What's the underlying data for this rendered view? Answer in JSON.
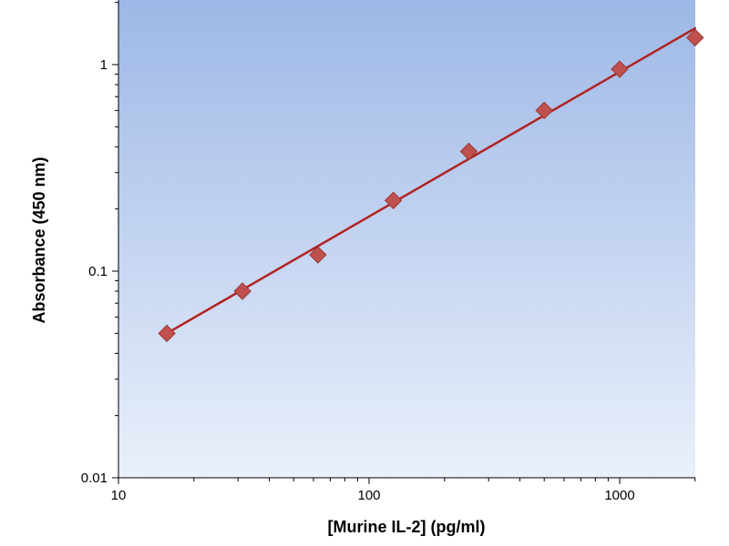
{
  "chart_data": {
    "type": "scatter",
    "title": "",
    "xlabel": "[Murine IL-2] (pg/ml)",
    "ylabel": "Absorbance (450 nm)",
    "x_scale": "log",
    "y_scale": "log",
    "xlim": [
      10,
      2000
    ],
    "ylim": [
      0.01,
      2
    ],
    "x_ticks": [
      {
        "value": 10,
        "label": "10"
      },
      {
        "value": 100,
        "label": "100"
      },
      {
        "value": 1000,
        "label": "1000"
      }
    ],
    "y_ticks": [
      {
        "value": 0.01,
        "label": "0.01"
      },
      {
        "value": 0.1,
        "label": "0.1"
      },
      {
        "value": 1,
        "label": "1"
      }
    ],
    "grid": false,
    "legend": "none",
    "series": [
      {
        "marker": "diamond",
        "points": [
          {
            "x": 15.6,
            "y": 0.05
          },
          {
            "x": 31.25,
            "y": 0.08
          },
          {
            "x": 62.5,
            "y": 0.12
          },
          {
            "x": 125,
            "y": 0.22
          },
          {
            "x": 250,
            "y": 0.38
          },
          {
            "x": 500,
            "y": 0.6
          },
          {
            "x": 1000,
            "y": 0.95
          },
          {
            "x": 2000,
            "y": 1.35
          }
        ]
      }
    ],
    "fit_line": {
      "x": [
        15.6,
        2000
      ],
      "y": [
        0.05,
        1.5
      ]
    },
    "colors": {
      "background_top": "#9db8e6",
      "background_bottom": "#eaf0fb",
      "marker": "#c0504d",
      "marker_stroke": "#9a3835",
      "fit_line": "#b22222",
      "axis": "#000000"
    }
  }
}
